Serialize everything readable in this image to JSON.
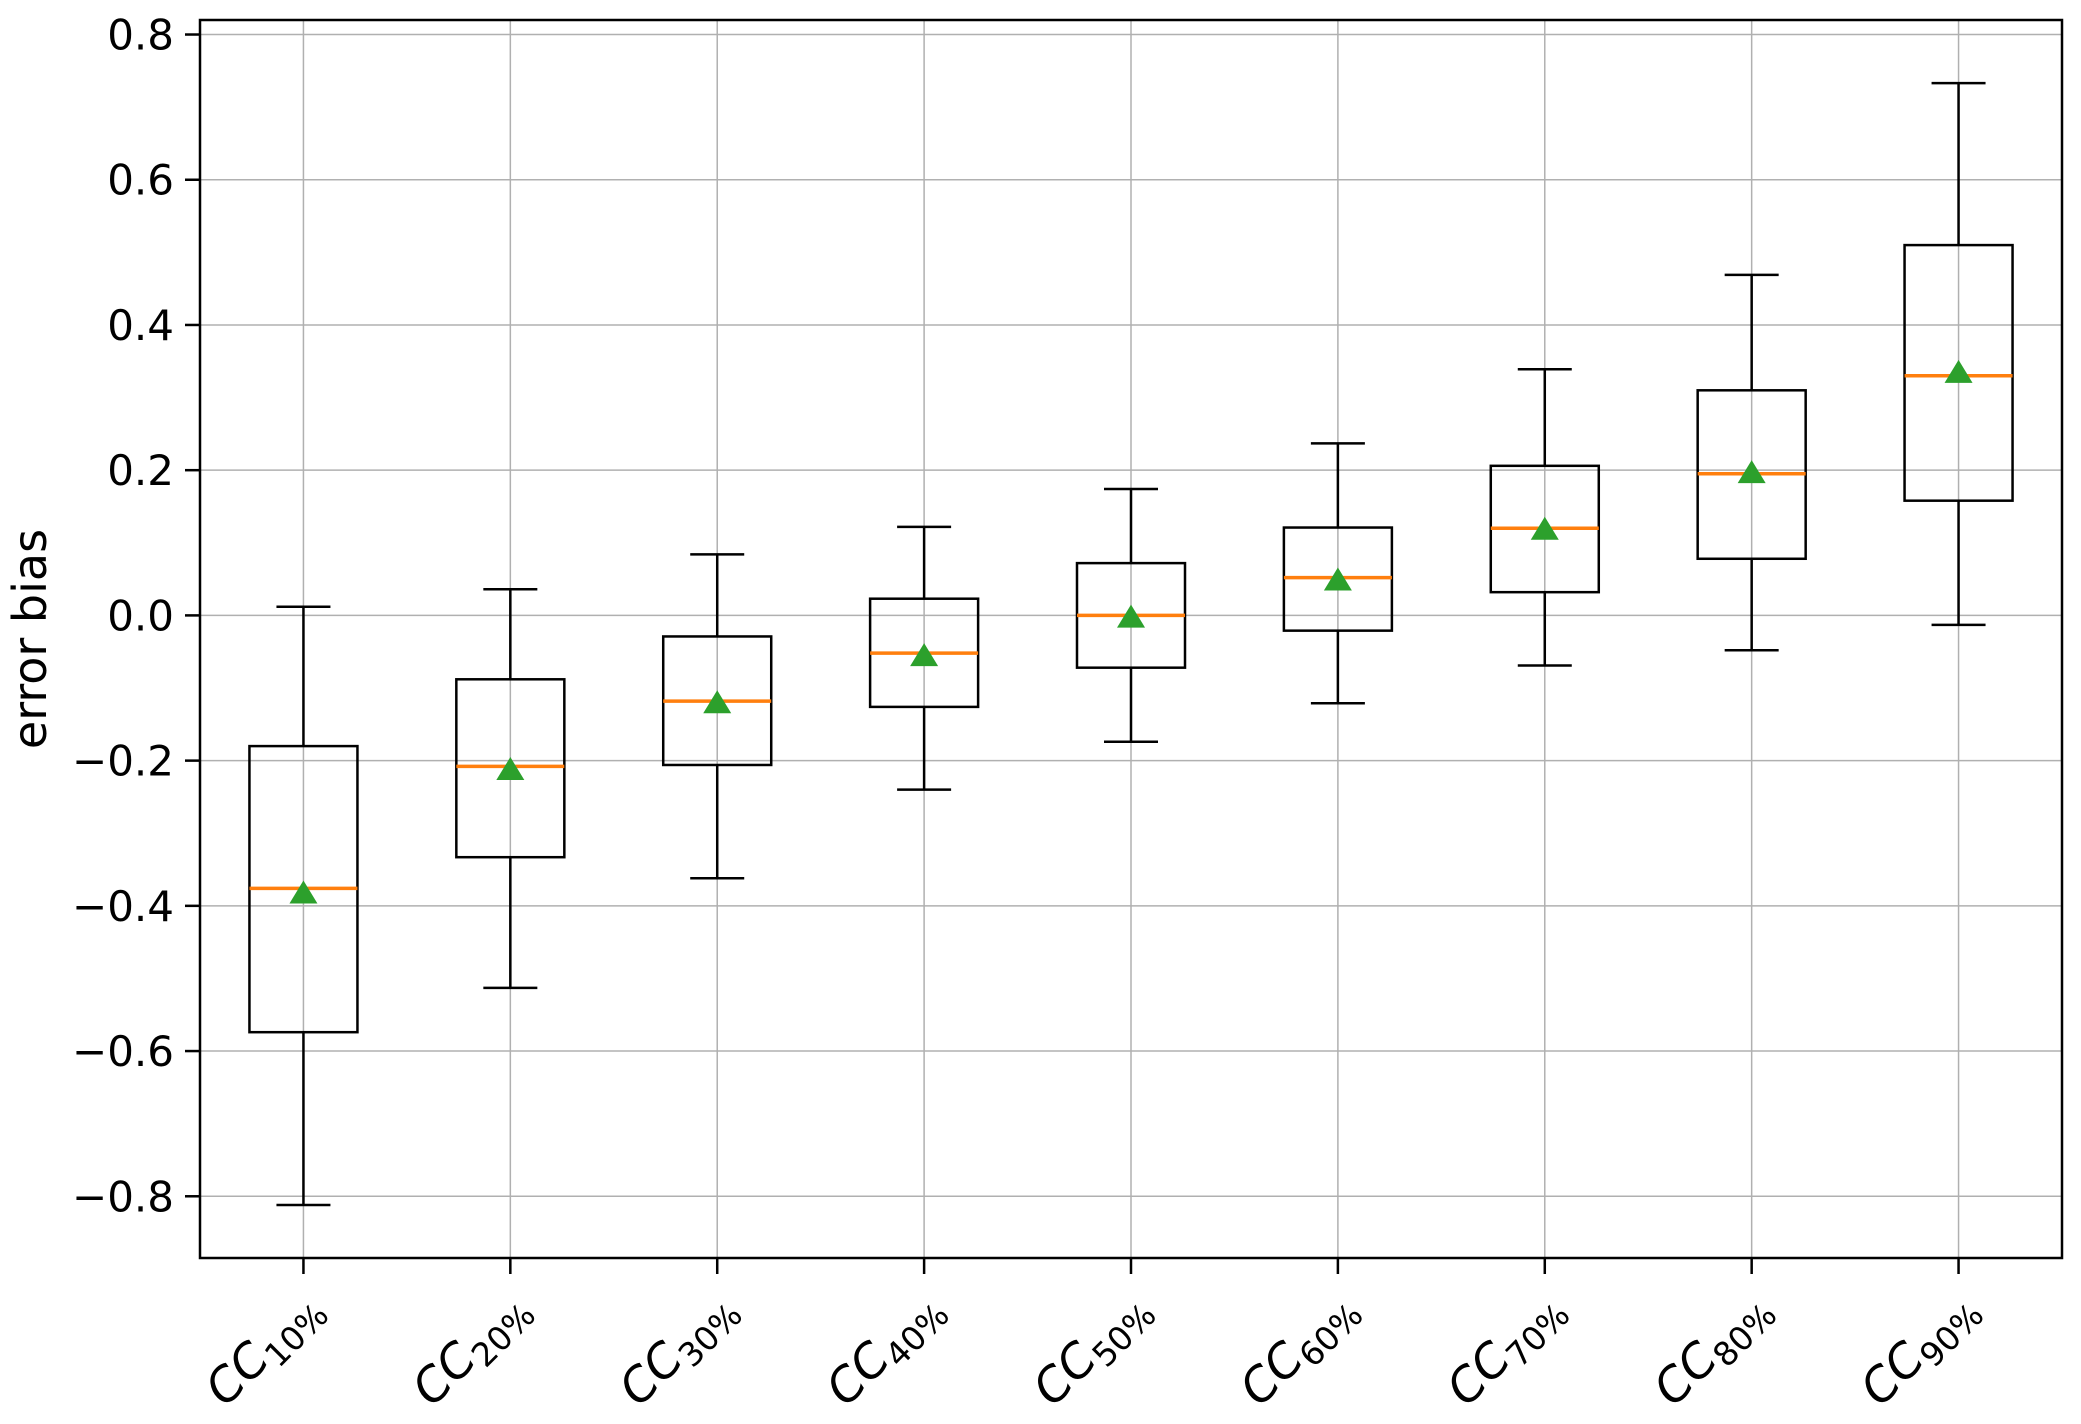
{
  "figure": {
    "background": "#ffffff"
  },
  "chart_data": {
    "type": "boxplot",
    "title": "",
    "xlabel": "",
    "ylabel": "error bias",
    "ylim": [
      -0.885,
      0.82
    ],
    "grid": true,
    "grid_color": "#b0b0b0",
    "legend": "none",
    "yticks": [
      {
        "value": 0.8,
        "label": "0.8"
      },
      {
        "value": 0.6,
        "label": "0.6"
      },
      {
        "value": 0.4,
        "label": "0.4"
      },
      {
        "value": 0.2,
        "label": "0.2"
      },
      {
        "value": 0.0,
        "label": "0.0"
      },
      {
        "value": -0.2,
        "label": "−0.2"
      },
      {
        "value": -0.4,
        "label": "−0.4"
      },
      {
        "value": -0.6,
        "label": "−0.6"
      },
      {
        "value": -0.8,
        "label": "−0.8"
      }
    ],
    "categories": [
      {
        "base": "CC",
        "subscript": "10%"
      },
      {
        "base": "CC",
        "subscript": "20%"
      },
      {
        "base": "CC",
        "subscript": "30%"
      },
      {
        "base": "CC",
        "subscript": "40%"
      },
      {
        "base": "CC",
        "subscript": "50%"
      },
      {
        "base": "CC",
        "subscript": "60%"
      },
      {
        "base": "CC",
        "subscript": "70%"
      },
      {
        "base": "CC",
        "subscript": "80%"
      },
      {
        "base": "CC",
        "subscript": "90%"
      }
    ],
    "boxes": [
      {
        "category": "CC10%",
        "whisker_low": -0.812,
        "q1": -0.574,
        "median": -0.376,
        "q3": -0.18,
        "whisker_high": 0.012,
        "mean": -0.383
      },
      {
        "category": "CC20%",
        "whisker_low": -0.513,
        "q1": -0.333,
        "median": -0.208,
        "q3": -0.088,
        "whisker_high": 0.036,
        "mean": -0.213
      },
      {
        "category": "CC30%",
        "whisker_low": -0.362,
        "q1": -0.206,
        "median": -0.118,
        "q3": -0.029,
        "whisker_high": 0.084,
        "mean": -0.121
      },
      {
        "category": "CC40%",
        "whisker_low": -0.24,
        "q1": -0.126,
        "median": -0.052,
        "q3": 0.023,
        "whisker_high": 0.122,
        "mean": -0.056
      },
      {
        "category": "CC50%",
        "whisker_low": -0.174,
        "q1": -0.072,
        "median": 0.0,
        "q3": 0.072,
        "whisker_high": 0.174,
        "mean": -0.003
      },
      {
        "category": "CC60%",
        "whisker_low": -0.121,
        "q1": -0.021,
        "median": 0.052,
        "q3": 0.121,
        "whisker_high": 0.237,
        "mean": 0.048
      },
      {
        "category": "CC70%",
        "whisker_low": -0.069,
        "q1": 0.032,
        "median": 0.12,
        "q3": 0.206,
        "whisker_high": 0.339,
        "mean": 0.118
      },
      {
        "category": "CC80%",
        "whisker_low": -0.048,
        "q1": 0.078,
        "median": 0.195,
        "q3": 0.31,
        "whisker_high": 0.469,
        "mean": 0.196
      },
      {
        "category": "CC90%",
        "whisker_low": -0.013,
        "q1": 0.158,
        "median": 0.33,
        "q3": 0.51,
        "whisker_high": 0.733,
        "mean": 0.334
      }
    ],
    "colors": {
      "box_line": "#000000",
      "whisker_line": "#000000",
      "median_line": "#ff7f0e",
      "mean_marker": "#2ca02c",
      "grid_line": "#b0b0b0",
      "tick_label": "#000000"
    }
  }
}
